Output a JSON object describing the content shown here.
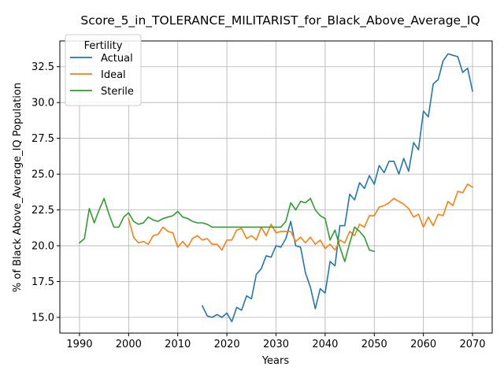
{
  "chart_data": {
    "type": "line",
    "title": "Score_5_in_TOLERANCE_MILITARIST_for_Black_Above_Average_IQ",
    "xlabel": "Years",
    "ylabel": "% of Black Above_Average_IQ Population",
    "xlim": [
      1986,
      2074
    ],
    "ylim": [
      13.9,
      34.3
    ],
    "xticks": [
      1990,
      2000,
      2010,
      2020,
      2030,
      2040,
      2050,
      2060,
      2070
    ],
    "yticks": [
      15.0,
      17.5,
      20.0,
      22.5,
      25.0,
      27.5,
      30.0,
      32.5
    ],
    "ytick_labels": [
      "15.0",
      "17.5",
      "20.0",
      "22.5",
      "25.0",
      "27.5",
      "30.0",
      "32.5"
    ],
    "grid": true,
    "legend": {
      "title": "Fertility",
      "position": "top-left"
    },
    "series": [
      {
        "name": "Actual",
        "color": "#1f77b4",
        "x": [
          2015,
          2016,
          2017,
          2018,
          2019,
          2020,
          2021,
          2022,
          2023,
          2024,
          2025,
          2026,
          2027,
          2028,
          2029,
          2030,
          2031,
          2032,
          2033,
          2034,
          2035,
          2036,
          2037,
          2038,
          2039,
          2040,
          2041,
          2042,
          2043,
          2044,
          2045,
          2046,
          2047,
          2048,
          2049,
          2050,
          2051,
          2052,
          2053,
          2054,
          2055,
          2056,
          2057,
          2058,
          2059,
          2060,
          2061,
          2062,
          2063,
          2064,
          2065,
          2066,
          2067,
          2068,
          2069,
          2070
        ],
        "y": [
          15.8,
          15.1,
          15.0,
          15.2,
          15.0,
          15.3,
          14.7,
          15.7,
          15.5,
          16.5,
          16.3,
          18.0,
          18.4,
          19.3,
          19.2,
          20.0,
          19.9,
          20.5,
          21.7,
          20.0,
          19.9,
          18.1,
          17.1,
          15.6,
          17.0,
          16.7,
          18.9,
          18.6,
          21.4,
          21.4,
          23.6,
          23.2,
          24.4,
          24.0,
          24.9,
          24.3,
          25.6,
          25.1,
          25.9,
          25.9,
          25.0,
          26.1,
          25.2,
          27.2,
          26.7,
          29.4,
          29.0,
          31.3,
          31.6,
          32.9,
          33.4,
          33.3,
          33.2,
          32.1,
          32.4,
          30.8
        ]
      },
      {
        "name": "Ideal",
        "color": "#ff7f0e",
        "x": [
          2000,
          2001,
          2002,
          2003,
          2004,
          2005,
          2006,
          2007,
          2008,
          2009,
          2010,
          2011,
          2012,
          2013,
          2014,
          2015,
          2016,
          2017,
          2018,
          2019,
          2020,
          2021,
          2022,
          2023,
          2024,
          2025,
          2026,
          2027,
          2028,
          2029,
          2030,
          2031,
          2032,
          2033,
          2034,
          2035,
          2036,
          2037,
          2038,
          2039,
          2040,
          2041,
          2042,
          2043,
          2044,
          2045,
          2046,
          2047,
          2048,
          2049,
          2050,
          2051,
          2052,
          2053,
          2054,
          2055,
          2056,
          2057,
          2058,
          2059,
          2060,
          2061,
          2062,
          2063,
          2064,
          2065,
          2066,
          2067,
          2068,
          2069,
          2070
        ],
        "y": [
          21.9,
          20.6,
          20.2,
          20.3,
          20.1,
          20.7,
          20.8,
          21.3,
          21.0,
          20.9,
          19.9,
          20.3,
          19.9,
          20.5,
          20.7,
          20.4,
          20.5,
          20.1,
          20.1,
          19.7,
          20.4,
          20.4,
          21.1,
          21.2,
          20.5,
          20.7,
          20.4,
          21.3,
          20.7,
          21.5,
          20.9,
          21.0,
          21.0,
          21.0,
          20.3,
          20.6,
          20.2,
          20.6,
          20.1,
          20.4,
          19.8,
          20.1,
          19.7,
          20.4,
          20.2,
          21.0,
          20.7,
          21.5,
          21.3,
          22.1,
          22.1,
          22.7,
          22.8,
          23.0,
          23.3,
          23.1,
          22.9,
          22.6,
          22.0,
          22.2,
          21.3,
          22.0,
          21.4,
          22.2,
          22.1,
          23.1,
          22.8,
          23.8,
          23.7,
          24.3,
          24.1
        ]
      },
      {
        "name": "Sterile",
        "color": "#2ca02c",
        "x": [
          1990,
          1991,
          1992,
          1993,
          1994,
          1995,
          1996,
          1997,
          1998,
          1999,
          2000,
          2001,
          2002,
          2003,
          2004,
          2005,
          2006,
          2007,
          2008,
          2009,
          2010,
          2011,
          2012,
          2013,
          2014,
          2015,
          2016,
          2017,
          2018,
          2019,
          2020,
          2021,
          2022,
          2023,
          2024,
          2025,
          2026,
          2027,
          2028,
          2029,
          2030,
          2031,
          2032,
          2033,
          2034,
          2035,
          2036,
          2037,
          2038,
          2039,
          2040,
          2041,
          2042,
          2043,
          2044,
          2045,
          2046,
          2047,
          2048,
          2049,
          2050
        ],
        "y": [
          20.2,
          20.5,
          22.6,
          21.6,
          22.5,
          23.3,
          22.2,
          21.3,
          21.3,
          22.0,
          22.3,
          21.7,
          21.5,
          21.6,
          22.0,
          21.8,
          21.7,
          21.9,
          22.0,
          22.1,
          22.4,
          22.0,
          21.9,
          21.7,
          21.6,
          21.6,
          21.5,
          21.3,
          21.3,
          21.3,
          21.3,
          21.3,
          21.3,
          21.3,
          21.3,
          21.3,
          21.3,
          21.3,
          21.3,
          21.3,
          21.3,
          21.3,
          21.7,
          23.0,
          22.5,
          23.1,
          23.0,
          23.3,
          22.5,
          22.1,
          21.9,
          20.4,
          21.1,
          19.9,
          18.9,
          20.2,
          21.3,
          21.0,
          20.6,
          19.7,
          19.6
        ]
      }
    ]
  }
}
